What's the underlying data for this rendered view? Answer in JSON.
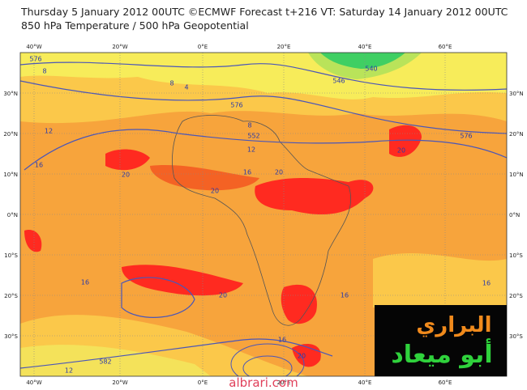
{
  "header": {
    "title": "Thursday 5 January 2012 00UTC ©ECMWF Forecast t+216 VT: Saturday 14 January 2012 00UTC",
    "subtitle": "850 hPa Temperature / 500 hPa Geopotential"
  },
  "map": {
    "longitudes": [
      "40°W",
      "20°W",
      "0°E",
      "20°E",
      "40°E",
      "60°E"
    ],
    "latitudes": [
      "30°N",
      "20°N",
      "10°N",
      "0°N",
      "10°S",
      "20°S",
      "30°S"
    ],
    "contour_labels": [
      "576",
      "8",
      "12",
      "16",
      "4",
      "8",
      "576",
      "8",
      "552",
      "12",
      "16",
      "20",
      "20",
      "20",
      "546",
      "540",
      "20",
      "576",
      "16",
      "20",
      "16",
      "16",
      "16",
      "582",
      "12",
      "20"
    ]
  },
  "logo": {
    "line1": "البراري",
    "line2": "أبو ميعاد"
  },
  "watermark": "albrari.com"
}
